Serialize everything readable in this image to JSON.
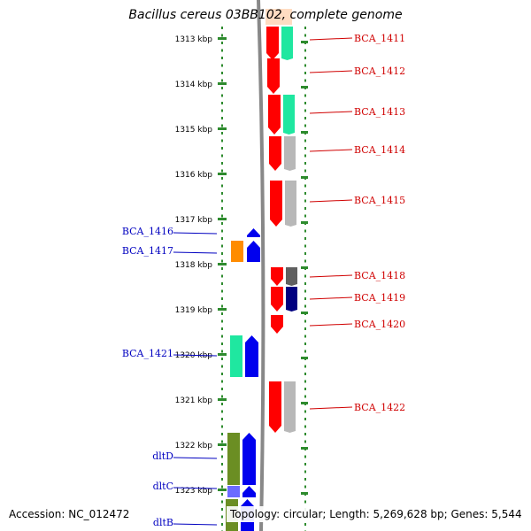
{
  "title": "Bacillus cereus 03BB102, complete genome",
  "footer": {
    "accession": "Accession: NC_012472",
    "summary": "Topology: circular; Length: 5,269,628 bp; Genes: 5,544"
  },
  "colors": {
    "axis_dots": "#2e8b2e",
    "backbone": "#888888",
    "forward_strand": "#ff0000",
    "reverse_strand": "#0000ee",
    "label_red": "#d00000",
    "label_blue": "#0000c0"
  },
  "scale_labels": [
    "1313 kbp",
    "1314 kbp",
    "1315 kbp",
    "1316 kbp",
    "1317 kbp",
    "1318 kbp",
    "1319 kbp",
    "1320 kbp",
    "1321 kbp",
    "1322 kbp",
    "1323 kbp"
  ],
  "right_genes": [
    {
      "label": "BCA_1411",
      "tag": "#1fe7a0"
    },
    {
      "label": "BCA_1412",
      "tag": null
    },
    {
      "label": "BCA_1413",
      "tag": "#1fe7a0"
    },
    {
      "label": "BCA_1414",
      "tag": "#b8b8b8"
    },
    {
      "label": "BCA_1415",
      "tag": "#b8b8b8"
    },
    {
      "label": "BCA_1418",
      "tag": "#606060"
    },
    {
      "label": "BCA_1419",
      "tag": "#000080"
    },
    {
      "label": "BCA_1420",
      "tag": null
    },
    {
      "label": "BCA_1422",
      "tag": "#b8b8b8"
    }
  ],
  "left_genes": [
    {
      "label": "BCA_1416",
      "tag": null
    },
    {
      "label": "BCA_1417",
      "tag": "#ff8c00"
    },
    {
      "label": "BCA_1421",
      "tag": "#1fe7a0"
    },
    {
      "label": "dltD",
      "tag": "#6b8e23"
    },
    {
      "label": "dltC",
      "tag": "#6b6bff"
    },
    {
      "label": "dltB",
      "tag": "#6b8e23"
    }
  ]
}
